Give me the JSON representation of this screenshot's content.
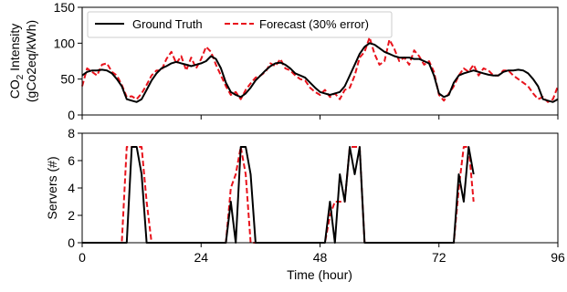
{
  "chart_data": [
    {
      "type": "line",
      "ylabel_line1_prefix": "CO",
      "ylabel_line1_sub": "2",
      "ylabel_line1_suffix": " Intensity",
      "ylabel_line2": "(gCo2eq/kWh)",
      "ylim": [
        0,
        150
      ],
      "yticks": [
        "0",
        "50",
        "100",
        "150"
      ],
      "xlim": [
        0,
        96
      ],
      "legend_placement": "top-left",
      "series": [
        {
          "name": "Ground Truth",
          "style": "solid",
          "color": "#000000",
          "x": [
            0,
            1,
            2,
            3,
            4,
            5,
            6,
            7,
            8,
            9,
            10,
            11,
            12,
            13,
            14,
            15,
            16,
            17,
            18,
            19,
            20,
            21,
            22,
            23,
            24,
            25,
            26,
            27,
            28,
            29,
            30,
            31,
            32,
            33,
            34,
            35,
            36,
            37,
            38,
            39,
            40,
            41,
            42,
            43,
            44,
            45,
            46,
            47,
            48,
            49,
            50,
            51,
            52,
            53,
            54,
            55,
            56,
            57,
            58,
            59,
            60,
            61,
            62,
            63,
            64,
            65,
            66,
            67,
            68,
            69,
            70,
            71,
            72,
            73,
            74,
            75,
            76,
            77,
            78,
            79,
            80,
            81,
            82,
            83,
            84,
            85,
            86,
            87,
            88,
            89,
            90,
            91,
            92,
            93,
            94,
            95,
            96
          ],
          "values": [
            55,
            60,
            62,
            62,
            63,
            62,
            58,
            50,
            40,
            22,
            20,
            18,
            22,
            35,
            48,
            58,
            65,
            68,
            72,
            74,
            72,
            70,
            68,
            70,
            72,
            75,
            82,
            78,
            65,
            45,
            32,
            28,
            25,
            30,
            38,
            48,
            55,
            62,
            68,
            72,
            73,
            70,
            65,
            58,
            55,
            52,
            45,
            38,
            32,
            30,
            28,
            30,
            32,
            40,
            55,
            70,
            85,
            95,
            100,
            98,
            93,
            88,
            85,
            82,
            80,
            80,
            80,
            78,
            78,
            75,
            72,
            55,
            30,
            25,
            28,
            45,
            55,
            58,
            60,
            62,
            60,
            58,
            56,
            55,
            55,
            60,
            62,
            62,
            63,
            62,
            58,
            50,
            40,
            22,
            20,
            18,
            22
          ],
          "values_note": ""
        },
        {
          "name": "Forecast (30% error)",
          "style": "dashed",
          "color": "#e8131c",
          "x": [
            0,
            1,
            2,
            3,
            4,
            5,
            6,
            7,
            8,
            9,
            10,
            11,
            12,
            13,
            14,
            15,
            16,
            17,
            18,
            19,
            20,
            21,
            22,
            23,
            24,
            25,
            26,
            27,
            28,
            29,
            30,
            31,
            32,
            33,
            34,
            35,
            36,
            37,
            38,
            39,
            40,
            41,
            42,
            43,
            44,
            45,
            46,
            47,
            48,
            49,
            50,
            51,
            52,
            53,
            54,
            55,
            56,
            57,
            58,
            59,
            60,
            61,
            62,
            63,
            64,
            65,
            66,
            67,
            68,
            69,
            70,
            71,
            72,
            73,
            74,
            75,
            76,
            77,
            78,
            79,
            80,
            81,
            82,
            83,
            84,
            85,
            86,
            87,
            88,
            89,
            90,
            91,
            92,
            93,
            94,
            95,
            96
          ],
          "values": [
            40,
            65,
            60,
            55,
            70,
            72,
            60,
            55,
            42,
            25,
            26,
            22,
            30,
            42,
            55,
            62,
            62,
            78,
            88,
            72,
            82,
            62,
            80,
            65,
            78,
            95,
            88,
            70,
            55,
            40,
            28,
            32,
            22,
            35,
            44,
            52,
            55,
            60,
            72,
            68,
            78,
            65,
            62,
            55,
            50,
            48,
            38,
            32,
            28,
            35,
            25,
            30,
            22,
            35,
            38,
            55,
            80,
            88,
            108,
            85,
            70,
            75,
            105,
            92,
            75,
            80,
            70,
            90,
            82,
            70,
            75,
            60,
            28,
            20,
            30,
            40,
            55,
            65,
            60,
            70,
            55,
            65,
            62,
            55,
            55,
            62,
            62,
            55,
            50,
            45,
            40,
            30,
            22,
            25,
            18,
            22,
            40
          ],
          "values_note": ""
        }
      ]
    },
    {
      "type": "line",
      "ylabel": "Servers (#)",
      "xlabel": "Time (hour)",
      "ylim": [
        0,
        8
      ],
      "yticks": [
        "0",
        "2",
        "4",
        "6",
        "8"
      ],
      "xlim": [
        0,
        96
      ],
      "xticks": [
        "0",
        "24",
        "48",
        "72",
        "96"
      ],
      "series": [
        {
          "name": "Ground Truth",
          "style": "solid",
          "color": "#000000",
          "x": [
            0,
            7,
            8,
            9,
            10,
            11,
            12,
            13,
            14,
            15,
            16,
            29,
            30,
            31,
            32,
            33,
            34,
            35,
            36,
            37,
            38,
            49,
            50,
            51,
            52,
            53,
            54,
            55,
            56,
            57,
            58,
            59,
            60,
            61,
            75,
            76,
            77,
            78,
            79
          ],
          "values": [
            0,
            0,
            0,
            0,
            7,
            7,
            5,
            0,
            0,
            0,
            0,
            0,
            3,
            0,
            7,
            7,
            5,
            0,
            0,
            0,
            0,
            0,
            3,
            0,
            5,
            3,
            7,
            5,
            7,
            0,
            0,
            0,
            0,
            0,
            0,
            5,
            3,
            7,
            5
          ]
        },
        {
          "name": "Forecast (30% error)",
          "style": "dashed",
          "color": "#e8131c",
          "x": [
            0,
            6,
            7,
            8,
            9,
            10,
            11,
            12,
            13,
            14,
            15,
            28,
            29,
            30,
            31,
            32,
            33,
            34,
            35,
            36,
            37,
            48,
            49,
            50,
            51,
            52,
            53,
            54,
            55,
            56,
            57,
            58,
            59,
            60,
            74,
            75,
            76,
            77,
            78,
            79
          ],
          "values": [
            0,
            0,
            0,
            0,
            7,
            7,
            7,
            7,
            3,
            0,
            0,
            0,
            0,
            4,
            5,
            7,
            5,
            0,
            0,
            0,
            0,
            0,
            0,
            2,
            3,
            3,
            3,
            7,
            7,
            7,
            0,
            0,
            0,
            0,
            0,
            0,
            4,
            7,
            7,
            3
          ]
        }
      ]
    }
  ]
}
